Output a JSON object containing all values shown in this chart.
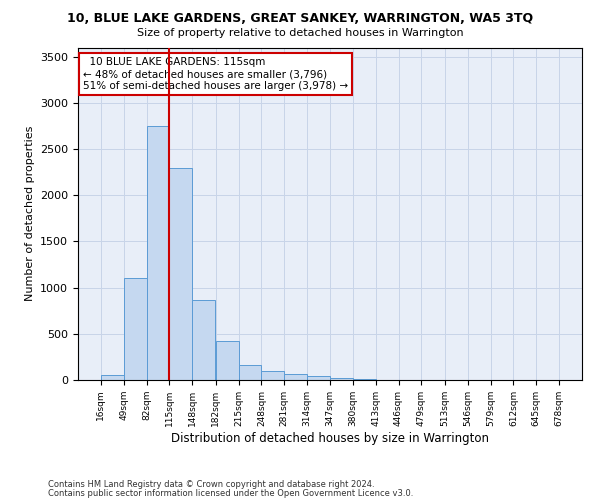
{
  "title": "10, BLUE LAKE GARDENS, GREAT SANKEY, WARRINGTON, WA5 3TQ",
  "subtitle": "Size of property relative to detached houses in Warrington",
  "xlabel": "Distribution of detached houses by size in Warrington",
  "ylabel": "Number of detached properties",
  "annotation_line1": "10 BLUE LAKE GARDENS: 115sqm",
  "annotation_line2": "← 48% of detached houses are smaller (3,796)",
  "annotation_line3": "51% of semi-detached houses are larger (3,978) →",
  "footer_line1": "Contains HM Land Registry data © Crown copyright and database right 2024.",
  "footer_line2": "Contains public sector information licensed under the Open Government Licence v3.0.",
  "property_size_sqm": 115,
  "bar_color": "#c5d8f0",
  "bar_edge_color": "#5b9bd5",
  "red_line_color": "#cc0000",
  "annotation_box_edge": "#cc0000",
  "grid_color": "#c8d4e8",
  "background_color": "#e8eef8",
  "bin_edges": [
    16,
    49,
    82,
    115,
    148,
    182,
    215,
    248,
    281,
    314,
    347,
    380,
    413,
    446,
    479,
    513,
    546,
    579,
    612,
    645,
    678
  ],
  "bin_labels": [
    "16sqm",
    "49sqm",
    "82sqm",
    "115sqm",
    "148sqm",
    "182sqm",
    "215sqm",
    "248sqm",
    "281sqm",
    "314sqm",
    "347sqm",
    "380sqm",
    "413sqm",
    "446sqm",
    "479sqm",
    "513sqm",
    "546sqm",
    "579sqm",
    "612sqm",
    "645sqm",
    "678sqm"
  ],
  "counts": [
    50,
    1100,
    2750,
    2300,
    870,
    420,
    165,
    100,
    60,
    40,
    20,
    10,
    5,
    5,
    3,
    2,
    1,
    1,
    0,
    0
  ],
  "ylim": [
    0,
    3600
  ],
  "yticks": [
    0,
    500,
    1000,
    1500,
    2000,
    2500,
    3000,
    3500
  ]
}
